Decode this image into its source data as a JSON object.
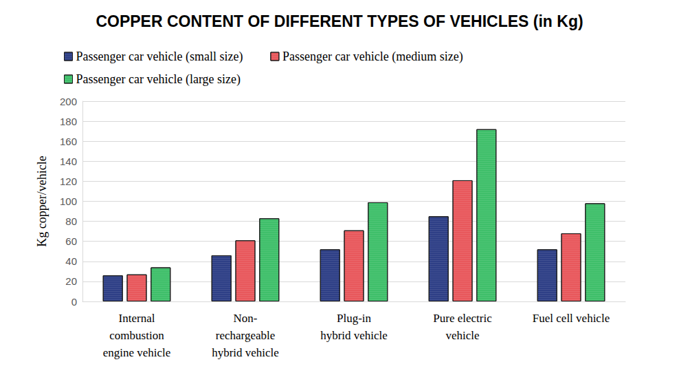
{
  "chart_data": {
    "type": "bar",
    "title": "COPPER CONTENT OF DIFFERENT TYPES OF VEHICLES (in Kg)",
    "y_label": "Kg copper/vehicle",
    "categories": [
      "Internal\ncombustion\nengine vehicle",
      "Non-\nrechargeable\nhybrid vehicle",
      "Plug-in\nhybrid vehicle",
      "Pure electric\nvehicle",
      "Fuel cell vehicle"
    ],
    "series": [
      {
        "name": "Passenger car vehicle (small size)",
        "color": "#2e3f86",
        "values": [
          26,
          46,
          52,
          85,
          52
        ]
      },
      {
        "name": "Passenger car vehicle (medium size)",
        "color": "#e8585c",
        "values": [
          27,
          61,
          71,
          121,
          68
        ]
      },
      {
        "name": "Passenger car vehicle (large size)",
        "color": "#3fbf6a",
        "values": [
          34,
          83,
          99,
          172,
          98
        ]
      }
    ],
    "ylim": [
      0,
      200
    ],
    "yticks": [
      0,
      20,
      40,
      60,
      80,
      100,
      120,
      140,
      160,
      180,
      200
    ],
    "grid": true,
    "legend": "top-left"
  }
}
